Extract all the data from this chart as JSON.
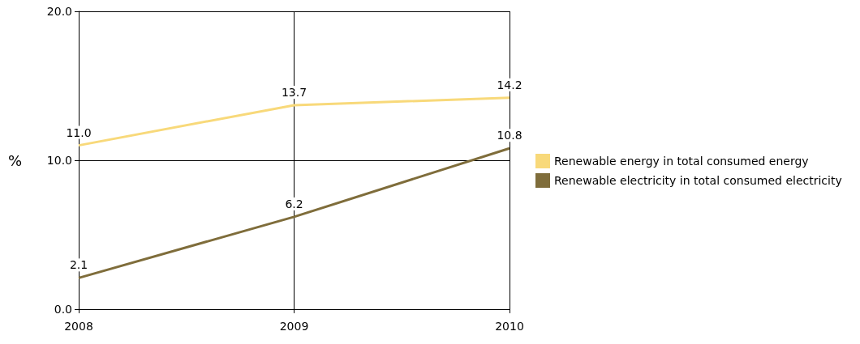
{
  "chart_data": {
    "type": "line",
    "ylabel": "%",
    "x": [
      2008,
      2009,
      2010
    ],
    "xlim": [
      2008,
      2010
    ],
    "xticks": [
      2008,
      2009,
      2010
    ],
    "ylim": [
      0,
      20
    ],
    "yticks": [
      {
        "value": 0,
        "label": "0.0"
      },
      {
        "value": 10,
        "label": "10.0"
      },
      {
        "value": 20,
        "label": "20.0"
      }
    ],
    "series": [
      {
        "name": "Renewable energy in total consumed energy",
        "color": "#f8d97a",
        "values": [
          11.0,
          13.7,
          14.2
        ],
        "value_labels": [
          "11.0",
          "13.7",
          "14.2"
        ]
      },
      {
        "name": "Renewable electricity in total consumed electricity",
        "color": "#7f6d3b",
        "values": [
          2.1,
          6.2,
          10.8
        ],
        "value_labels": [
          "2.1",
          "6.2",
          "10.8"
        ]
      }
    ],
    "grid": true,
    "legend": "right",
    "marker": "none",
    "line_style": "solid"
  }
}
